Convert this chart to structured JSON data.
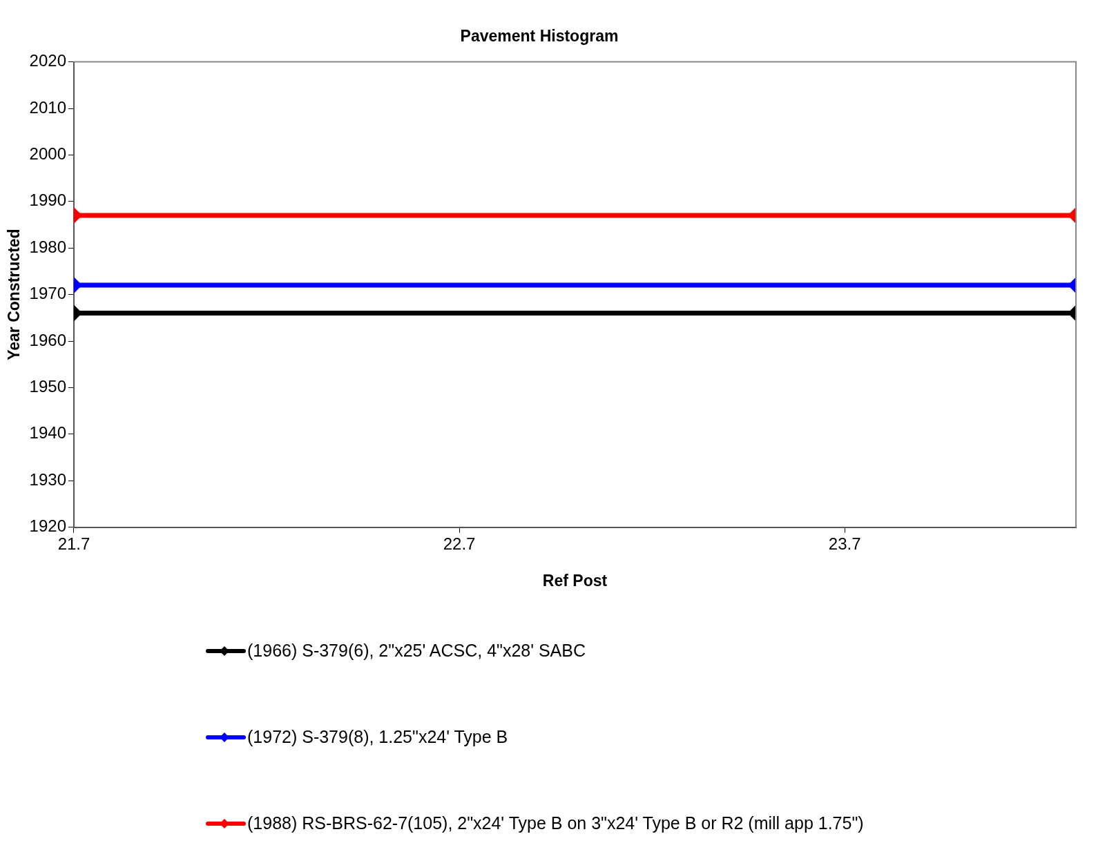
{
  "chart_data": {
    "type": "line",
    "title": "Pavement Histogram",
    "xlabel": "Ref Post",
    "ylabel": "Year Constructed",
    "x": [
      21.7,
      24.3
    ],
    "series": [
      {
        "name": "(1966) S-379(6), 2\"x25' ACSC, 4\"x28' SABC",
        "color": "#000000",
        "values": [
          1966,
          1966
        ]
      },
      {
        "name": "(1972) S-379(8), 1.25\"x24' Type B",
        "color": "#0000ff",
        "values": [
          1972,
          1972
        ]
      },
      {
        "name": "(1988) RS-BRS-62-7(105), 2\"x24' Type B on 3\"x24' Type B or R2 (mill app 1.75\")",
        "color": "#ff0000",
        "values": [
          1987,
          1987
        ]
      }
    ],
    "xlim": [
      21.7,
      24.3
    ],
    "xticks": [
      21.7,
      22.7,
      23.7
    ],
    "ylim": [
      1920,
      2020
    ],
    "yticks": [
      1920,
      1930,
      1940,
      1950,
      1960,
      1970,
      1980,
      1990,
      2000,
      2010,
      2020
    ],
    "grid": false,
    "legend": "bottom",
    "marker": "diamond",
    "line_style": "solid"
  }
}
